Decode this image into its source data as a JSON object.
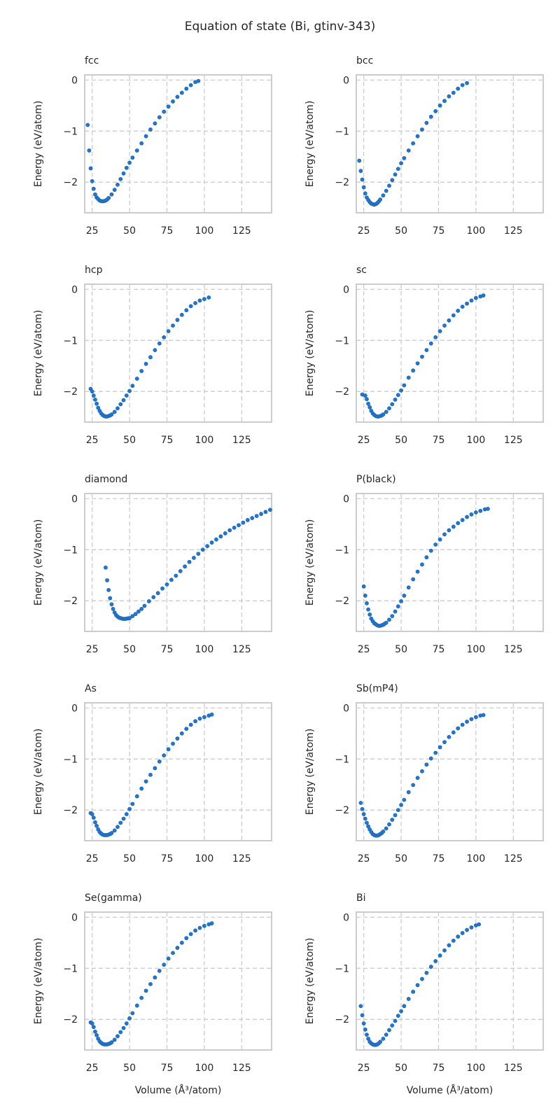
{
  "figure": {
    "title": "Equation of state (Bi, gtinv-343)",
    "xlabel": "Volume (Å³/atom)",
    "ylabel": "Energy (eV/atom)",
    "marker_color": "#1f77d4",
    "grid_color": "#c8c8c8"
  },
  "chart_data": [
    {
      "type": "scatter",
      "title": "fcc",
      "xlim": [
        20,
        145
      ],
      "ylim": [
        -2.6,
        0.1
      ],
      "xticks": [
        25,
        50,
        75,
        100,
        125
      ],
      "yticks": [
        0,
        -1,
        -2
      ],
      "series": [
        {
          "name": "fcc",
          "x": [
            22,
            23,
            24,
            25,
            26,
            27,
            28,
            29,
            30,
            31,
            32,
            33,
            34,
            35,
            36,
            38,
            40,
            42,
            44,
            46,
            48,
            50,
            52,
            55,
            58,
            61,
            64,
            67,
            70,
            73,
            76,
            79,
            82,
            85,
            88,
            91,
            94,
            96
          ],
          "y": [
            -0.88,
            -1.38,
            -1.73,
            -1.98,
            -2.13,
            -2.24,
            -2.3,
            -2.33,
            -2.36,
            -2.37,
            -2.375,
            -2.37,
            -2.36,
            -2.34,
            -2.31,
            -2.24,
            -2.15,
            -2.05,
            -1.94,
            -1.83,
            -1.72,
            -1.62,
            -1.52,
            -1.38,
            -1.24,
            -1.1,
            -0.97,
            -0.85,
            -0.73,
            -0.62,
            -0.52,
            -0.42,
            -0.33,
            -0.25,
            -0.17,
            -0.1,
            -0.04,
            -0.02
          ]
        }
      ]
    },
    {
      "type": "scatter",
      "title": "bcc",
      "xlim": [
        20,
        145
      ],
      "ylim": [
        -2.6,
        0.1
      ],
      "xticks": [
        25,
        50,
        75,
        100,
        125
      ],
      "yticks": [
        0,
        -1,
        -2
      ],
      "series": [
        {
          "name": "bcc",
          "x": [
            22,
            23,
            24,
            25,
            26,
            27,
            28,
            29,
            30,
            31,
            32,
            33,
            34,
            35,
            36,
            38,
            40,
            42,
            44,
            46,
            48,
            50,
            52,
            55,
            58,
            61,
            64,
            67,
            70,
            73,
            76,
            79,
            82,
            85,
            88,
            91,
            94
          ],
          "y": [
            -1.58,
            -1.78,
            -1.95,
            -2.1,
            -2.22,
            -2.3,
            -2.35,
            -2.39,
            -2.42,
            -2.43,
            -2.44,
            -2.43,
            -2.41,
            -2.38,
            -2.34,
            -2.26,
            -2.17,
            -2.07,
            -1.96,
            -1.85,
            -1.74,
            -1.63,
            -1.53,
            -1.38,
            -1.24,
            -1.1,
            -0.97,
            -0.84,
            -0.72,
            -0.61,
            -0.5,
            -0.41,
            -0.32,
            -0.25,
            -0.17,
            -0.1,
            -0.06
          ]
        }
      ]
    },
    {
      "type": "scatter",
      "title": "hcp",
      "xlim": [
        20,
        145
      ],
      "ylim": [
        -2.6,
        0.1
      ],
      "xticks": [
        25,
        50,
        75,
        100,
        125
      ],
      "yticks": [
        0,
        -1,
        -2
      ],
      "series": [
        {
          "name": "hcp",
          "x": [
            24,
            25,
            26,
            27,
            28,
            29,
            30,
            31,
            32,
            33,
            34,
            35,
            36,
            37,
            38,
            40,
            42,
            44,
            46,
            48,
            50,
            52,
            55,
            58,
            61,
            64,
            67,
            70,
            73,
            76,
            79,
            82,
            85,
            88,
            91,
            94,
            97,
            100,
            103
          ],
          "y": [
            -1.95,
            -2.0,
            -2.08,
            -2.16,
            -2.24,
            -2.32,
            -2.38,
            -2.43,
            -2.46,
            -2.48,
            -2.49,
            -2.49,
            -2.48,
            -2.47,
            -2.45,
            -2.4,
            -2.33,
            -2.25,
            -2.17,
            -2.08,
            -1.99,
            -1.89,
            -1.75,
            -1.6,
            -1.46,
            -1.33,
            -1.19,
            -1.06,
            -0.94,
            -0.82,
            -0.71,
            -0.6,
            -0.5,
            -0.41,
            -0.33,
            -0.27,
            -0.22,
            -0.19,
            -0.16
          ]
        }
      ]
    },
    {
      "type": "scatter",
      "title": "sc",
      "xlim": [
        20,
        145
      ],
      "ylim": [
        -2.6,
        0.1
      ],
      "xticks": [
        25,
        50,
        75,
        100,
        125
      ],
      "yticks": [
        0,
        -1,
        -2
      ],
      "series": [
        {
          "name": "sc",
          "x": [
            24,
            26,
            27,
            28,
            29,
            30,
            31,
            32,
            33,
            34,
            35,
            36,
            37,
            38,
            40,
            42,
            44,
            46,
            48,
            50,
            52,
            55,
            58,
            61,
            64,
            67,
            70,
            73,
            76,
            79,
            82,
            85,
            88,
            91,
            94,
            97,
            100,
            103,
            105
          ],
          "y": [
            -2.06,
            -2.08,
            -2.15,
            -2.24,
            -2.31,
            -2.38,
            -2.43,
            -2.46,
            -2.48,
            -2.49,
            -2.49,
            -2.48,
            -2.47,
            -2.45,
            -2.4,
            -2.33,
            -2.25,
            -2.16,
            -2.07,
            -1.98,
            -1.88,
            -1.73,
            -1.59,
            -1.45,
            -1.32,
            -1.19,
            -1.06,
            -0.94,
            -0.82,
            -0.71,
            -0.61,
            -0.51,
            -0.42,
            -0.34,
            -0.28,
            -0.22,
            -0.17,
            -0.14,
            -0.12
          ]
        }
      ]
    },
    {
      "type": "scatter",
      "title": "diamond",
      "xlim": [
        20,
        145
      ],
      "ylim": [
        -2.6,
        0.1
      ],
      "xticks": [
        25,
        50,
        75,
        100,
        125
      ],
      "yticks": [
        0,
        -1,
        -2
      ],
      "series": [
        {
          "name": "diamond",
          "x": [
            34,
            35,
            36,
            37,
            38,
            39,
            40,
            41,
            42,
            43,
            44,
            45,
            46,
            47,
            48,
            49,
            50,
            52,
            54,
            56,
            58,
            60,
            63,
            66,
            69,
            72,
            75,
            78,
            81,
            84,
            87,
            90,
            93,
            96,
            99,
            102,
            105,
            108,
            111,
            114,
            117,
            120,
            123,
            126,
            129,
            132,
            135,
            138,
            141,
            144
          ],
          "y": [
            -1.35,
            -1.6,
            -1.79,
            -1.95,
            -2.07,
            -2.16,
            -2.23,
            -2.28,
            -2.31,
            -2.33,
            -2.34,
            -2.35,
            -2.355,
            -2.355,
            -2.35,
            -2.345,
            -2.34,
            -2.3,
            -2.26,
            -2.21,
            -2.16,
            -2.1,
            -2.01,
            -1.93,
            -1.85,
            -1.76,
            -1.68,
            -1.59,
            -1.51,
            -1.42,
            -1.33,
            -1.24,
            -1.16,
            -1.08,
            -1.0,
            -0.93,
            -0.86,
            -0.8,
            -0.74,
            -0.68,
            -0.62,
            -0.57,
            -0.52,
            -0.47,
            -0.42,
            -0.38,
            -0.34,
            -0.3,
            -0.26,
            -0.22
          ]
        }
      ]
    },
    {
      "type": "scatter",
      "title": "P(black)",
      "xlim": [
        20,
        145
      ],
      "ylim": [
        -2.6,
        0.1
      ],
      "xticks": [
        25,
        50,
        75,
        100,
        125
      ],
      "yticks": [
        0,
        -1,
        -2
      ],
      "series": [
        {
          "name": "P(black)",
          "x": [
            25,
            26,
            27,
            28,
            29,
            30,
            31,
            32,
            33,
            34,
            35,
            36,
            37,
            38,
            39,
            40,
            42,
            44,
            46,
            48,
            50,
            52,
            55,
            58,
            61,
            64,
            67,
            70,
            73,
            76,
            79,
            82,
            85,
            88,
            91,
            94,
            97,
            100,
            103,
            106,
            108
          ],
          "y": [
            -1.72,
            -1.9,
            -2.05,
            -2.17,
            -2.27,
            -2.35,
            -2.4,
            -2.44,
            -2.46,
            -2.48,
            -2.49,
            -2.49,
            -2.48,
            -2.47,
            -2.45,
            -2.43,
            -2.37,
            -2.3,
            -2.21,
            -2.11,
            -2.01,
            -1.9,
            -1.74,
            -1.58,
            -1.43,
            -1.29,
            -1.15,
            -1.02,
            -0.9,
            -0.8,
            -0.7,
            -0.62,
            -0.55,
            -0.48,
            -0.42,
            -0.36,
            -0.31,
            -0.27,
            -0.24,
            -0.21,
            -0.2
          ]
        }
      ]
    },
    {
      "type": "scatter",
      "title": "As",
      "xlim": [
        20,
        145
      ],
      "ylim": [
        -2.6,
        0.1
      ],
      "xticks": [
        25,
        50,
        75,
        100,
        125
      ],
      "yticks": [
        0,
        -1,
        -2
      ],
      "series": [
        {
          "name": "As",
          "x": [
            24,
            25,
            26,
            27,
            28,
            29,
            30,
            31,
            32,
            33,
            34,
            35,
            36,
            37,
            38,
            40,
            42,
            44,
            46,
            48,
            50,
            52,
            55,
            58,
            61,
            64,
            67,
            70,
            73,
            76,
            79,
            82,
            85,
            88,
            91,
            94,
            97,
            100,
            103,
            105
          ],
          "y": [
            -2.06,
            -2.08,
            -2.15,
            -2.24,
            -2.31,
            -2.38,
            -2.43,
            -2.46,
            -2.48,
            -2.49,
            -2.49,
            -2.49,
            -2.48,
            -2.47,
            -2.45,
            -2.4,
            -2.33,
            -2.25,
            -2.17,
            -2.08,
            -1.98,
            -1.88,
            -1.73,
            -1.58,
            -1.44,
            -1.31,
            -1.18,
            -1.05,
            -0.93,
            -0.81,
            -0.7,
            -0.6,
            -0.5,
            -0.41,
            -0.33,
            -0.26,
            -0.21,
            -0.18,
            -0.15,
            -0.13
          ]
        }
      ]
    },
    {
      "type": "scatter",
      "title": "Sb(mP4)",
      "xlim": [
        20,
        145
      ],
      "ylim": [
        -2.6,
        0.1
      ],
      "xticks": [
        25,
        50,
        75,
        100,
        125
      ],
      "yticks": [
        0,
        -1,
        -2
      ],
      "series": [
        {
          "name": "Sb(mP4)",
          "x": [
            23,
            24,
            25,
            26,
            27,
            28,
            29,
            30,
            31,
            32,
            33,
            34,
            35,
            36,
            37,
            38,
            40,
            42,
            44,
            46,
            48,
            50,
            52,
            55,
            58,
            61,
            64,
            67,
            70,
            73,
            76,
            79,
            82,
            85,
            88,
            91,
            94,
            97,
            100,
            103,
            105
          ],
          "y": [
            -1.86,
            -1.98,
            -2.08,
            -2.17,
            -2.25,
            -2.32,
            -2.38,
            -2.43,
            -2.47,
            -2.49,
            -2.5,
            -2.5,
            -2.49,
            -2.47,
            -2.45,
            -2.42,
            -2.36,
            -2.28,
            -2.19,
            -2.1,
            -2.0,
            -1.9,
            -1.8,
            -1.65,
            -1.51,
            -1.37,
            -1.24,
            -1.11,
            -0.99,
            -0.88,
            -0.77,
            -0.67,
            -0.57,
            -0.48,
            -0.4,
            -0.33,
            -0.27,
            -0.22,
            -0.18,
            -0.15,
            -0.14
          ]
        }
      ]
    },
    {
      "type": "scatter",
      "title": "Se(gamma)",
      "xlim": [
        20,
        145
      ],
      "ylim": [
        -2.6,
        0.1
      ],
      "xticks": [
        25,
        50,
        75,
        100,
        125
      ],
      "yticks": [
        0,
        -1,
        -2
      ],
      "series": [
        {
          "name": "Se(gamma)",
          "x": [
            24,
            25,
            26,
            27,
            28,
            29,
            30,
            31,
            32,
            33,
            34,
            35,
            36,
            37,
            38,
            40,
            42,
            44,
            46,
            48,
            50,
            52,
            55,
            58,
            61,
            64,
            67,
            70,
            73,
            76,
            79,
            82,
            85,
            88,
            91,
            94,
            97,
            100,
            103,
            105
          ],
          "y": [
            -2.06,
            -2.08,
            -2.15,
            -2.24,
            -2.31,
            -2.38,
            -2.43,
            -2.46,
            -2.48,
            -2.49,
            -2.49,
            -2.49,
            -2.48,
            -2.47,
            -2.45,
            -2.4,
            -2.33,
            -2.25,
            -2.17,
            -2.08,
            -1.98,
            -1.88,
            -1.73,
            -1.58,
            -1.44,
            -1.31,
            -1.18,
            -1.05,
            -0.93,
            -0.81,
            -0.7,
            -0.6,
            -0.5,
            -0.41,
            -0.33,
            -0.26,
            -0.21,
            -0.17,
            -0.14,
            -0.12
          ]
        }
      ]
    },
    {
      "type": "scatter",
      "title": "Bi",
      "xlim": [
        20,
        145
      ],
      "ylim": [
        -2.6,
        0.1
      ],
      "xticks": [
        25,
        50,
        75,
        100,
        125
      ],
      "yticks": [
        0,
        -1,
        -2
      ],
      "series": [
        {
          "name": "Bi",
          "x": [
            23,
            24,
            25,
            26,
            27,
            28,
            29,
            30,
            31,
            32,
            33,
            34,
            35,
            36,
            38,
            40,
            42,
            44,
            46,
            48,
            50,
            52,
            55,
            58,
            61,
            64,
            67,
            70,
            73,
            76,
            79,
            82,
            85,
            88,
            91,
            94,
            97,
            100,
            102
          ],
          "y": [
            -1.74,
            -1.92,
            -2.08,
            -2.2,
            -2.3,
            -2.38,
            -2.44,
            -2.47,
            -2.49,
            -2.5,
            -2.5,
            -2.49,
            -2.47,
            -2.44,
            -2.38,
            -2.3,
            -2.21,
            -2.12,
            -2.03,
            -1.93,
            -1.84,
            -1.74,
            -1.6,
            -1.46,
            -1.33,
            -1.21,
            -1.09,
            -0.97,
            -0.86,
            -0.75,
            -0.65,
            -0.55,
            -0.46,
            -0.38,
            -0.31,
            -0.25,
            -0.2,
            -0.16,
            -0.14
          ]
        }
      ]
    }
  ]
}
